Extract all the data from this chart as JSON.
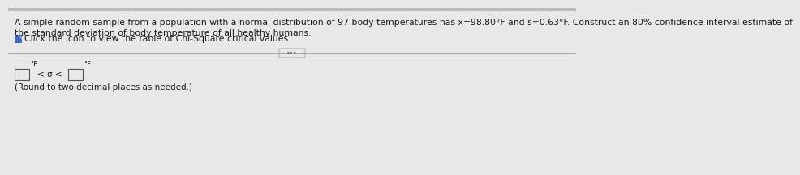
{
  "bg_color": "#e8e8e8",
  "top_strip_color": "#c8c8c8",
  "main_text_line1": "A simple random sample from a population with a normal distribution of 97 body temperatures has x̅=98.80°F and s=0.63°F. Construct an 80% confidence interval estimate of",
  "main_text_line2": "the standard deviation of body temperature of all healthy humans.",
  "icon_text": "Click the icon to view the table of Chi-Square critical values.",
  "round_text": "(Round to two decimal places as needed.)",
  "text_color": "#1a1a1a",
  "icon_color": "#4466bb",
  "divider_color": "#aaaaaa",
  "box_color": "#555555",
  "font_size_main": 7.8,
  "font_size_small": 7.5,
  "font_size_icon": 7.8
}
